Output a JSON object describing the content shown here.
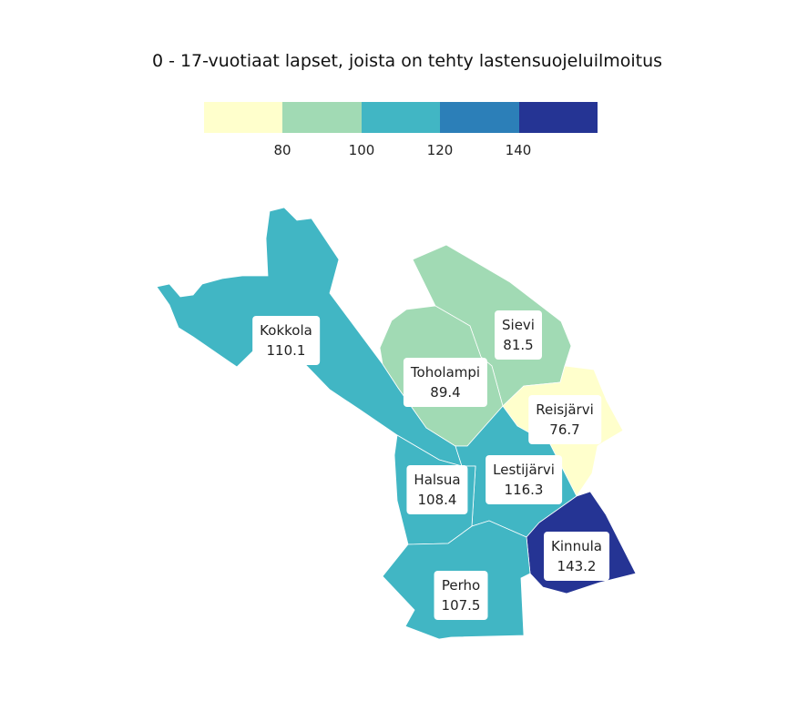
{
  "title": "0 - 17-vuotiaat lapset, joista on tehty lastensuojeluilmoitus",
  "legend": {
    "colors": [
      "#ffffcc",
      "#a1dab4",
      "#41b6c4",
      "#2c7fb8",
      "#253494"
    ],
    "ticks": [
      "80",
      "100",
      "120",
      "140"
    ]
  },
  "chart_data": {
    "type": "choropleth",
    "breaks": [
      80,
      100,
      120,
      140
    ],
    "regions": [
      {
        "name": "Kokkola",
        "value": "110.1",
        "color": "#41b6c4"
      },
      {
        "name": "Sievi",
        "value": "81.5",
        "color": "#a1dab4"
      },
      {
        "name": "Toholampi",
        "value": "89.4",
        "color": "#a1dab4"
      },
      {
        "name": "Reisjärvi",
        "value": "76.7",
        "color": "#ffffcc"
      },
      {
        "name": "Halsua",
        "value": "108.4",
        "color": "#41b6c4"
      },
      {
        "name": "Lestijärvi",
        "value": "116.3",
        "color": "#41b6c4"
      },
      {
        "name": "Kinnula",
        "value": "143.2",
        "color": "#253494"
      },
      {
        "name": "Perho",
        "value": "107.5",
        "color": "#41b6c4"
      }
    ]
  }
}
